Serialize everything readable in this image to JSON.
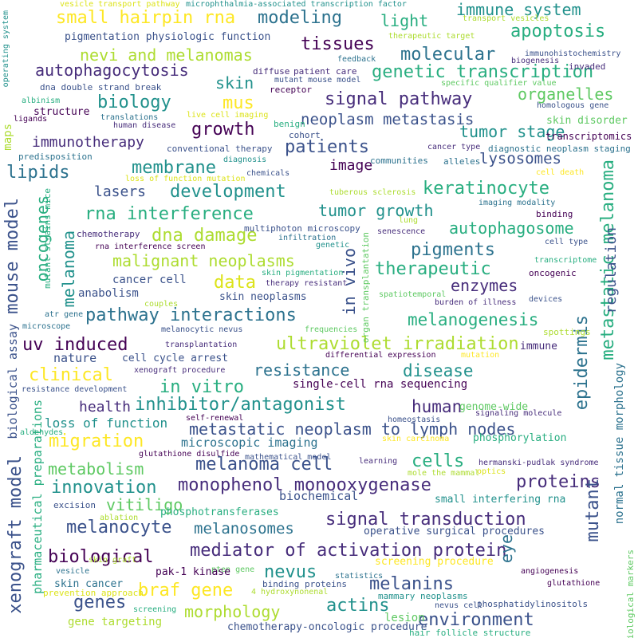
{
  "title": "Melanoma research word cloud",
  "words": [
    "vesicle transport pathway",
    "microphthalmia-associated transcription factor",
    "immune system",
    "small hairpin rna",
    "modeling",
    "light",
    "apoptosis",
    "pigmentation physiologic function",
    "therapeutic target",
    "nevi and melanomas",
    "tissues",
    "molecular",
    "autophagocytosis",
    "diffuse",
    "patient care",
    "genetic transcription",
    "skin",
    "mutant mouse model",
    "receptor",
    "biology",
    "mus",
    "signal pathway",
    "organelles",
    "neoplasm metastasis",
    "tumor stage",
    "growth",
    "patients",
    "immunotherapy",
    "lipids",
    "membrane",
    "image",
    "lysosomes",
    "development",
    "keratinocyte",
    "rna interference",
    "tumor growth",
    "dna damage",
    "autophagosome",
    "pigments",
    "malignant neoplasms",
    "therapeutic",
    "data",
    "enzymes",
    "cancer cell",
    "pathway interactions",
    "melanogenesis",
    "uv induced",
    "ultraviolet irradiation",
    "resistance",
    "disease",
    "clinical",
    "in vitro",
    "single-cell rna sequencing",
    "inhibitor/antagonist",
    "human",
    "metastatic neoplasm to lymph nodes",
    "migration",
    "microscopic imaging",
    "melanoma cell",
    "cells",
    "innovation",
    "monophenol monooxygenase",
    "proteins",
    "vitiligo",
    "melanocyte",
    "melanosomes",
    "signal transduction",
    "mediator of activation protein",
    "biological",
    "braf gene",
    "nevus",
    "melanins",
    "genes",
    "actins",
    "morphology",
    "environment",
    "gene targeting",
    "chemotherapy-oncologic procedure",
    "metastatic melanoma",
    "epidermis",
    "mutant",
    "xenograft model",
    "mouse model",
    "oncogenes",
    "melanoma",
    "in vivo",
    "regulation",
    "normal tissue morphology",
    "biological assay",
    "pharmaceutical preparations",
    "mutant strains mice",
    "maps",
    "eye",
    "operating system",
    "biological markers",
    "organ transplantation",
    "transport vesicles",
    "feedback",
    "biogenesis",
    "immunohistochemistry",
    "invaded",
    "specific qualifier value",
    "homologous gene",
    "skin disorder",
    "transcriptomics",
    "diagnostic neoplasm staging",
    "cancer type",
    "alleles",
    "cell death",
    "binding",
    "cell type",
    "transcriptome",
    "oncogenic",
    "devices",
    "spottings",
    "mutation",
    "immune",
    "genome-wide",
    "phosphorylation",
    "signaling molecule",
    "homeostasis",
    "hermanski-pudlak syndrome",
    "optics",
    "small interfering rna",
    "biochemical",
    "operative surgical procedures",
    "screening procedure",
    "angiogenesis",
    "glutathione",
    "phosphatidylinositols",
    "mammary neoplasms",
    "nevus cell",
    "lesion",
    "hair follicle structure",
    "statistics",
    "binding proteins",
    "4 hydroxynonenal",
    "pten gene",
    "screening",
    "prevention approach",
    "skin cancer",
    "pak-1 kinase",
    "vesicle",
    "skin graft",
    "ablation",
    "phosphotransferases",
    "excision",
    "glutathione disulfide",
    "mathematical model",
    "self-renewal",
    "aldehydes",
    "resistance development",
    "health",
    "loss of function",
    "metabolism",
    "nature",
    "cell cycle arrest",
    "xenograft procedure",
    "transplantation",
    "melanocytic nevus",
    "frequencies",
    "differential expression",
    "microscope",
    "atr gene",
    "couples",
    "anabolism",
    "skin neoplasms",
    "therapy resistant",
    "skin pigmentation",
    "spatiotemporal",
    "burden of illness",
    "skin carcinoma",
    "mole the mammal",
    "learning",
    "chemotherapy",
    "multiphoton microscopy",
    "rna interference screen",
    "infiltration",
    "genetic",
    "senescence",
    "lasers",
    "tuberous sclerosis",
    "imaging modality",
    "lung",
    "conventional therapy",
    "diagnosis",
    "chemicals",
    "loss of function mutation",
    "communities",
    "predisposition",
    "cohort",
    "benign",
    "human disease",
    "translations",
    "live cell imaging",
    "structure",
    "ligands",
    "albinism",
    "dna double strand break"
  ]
}
